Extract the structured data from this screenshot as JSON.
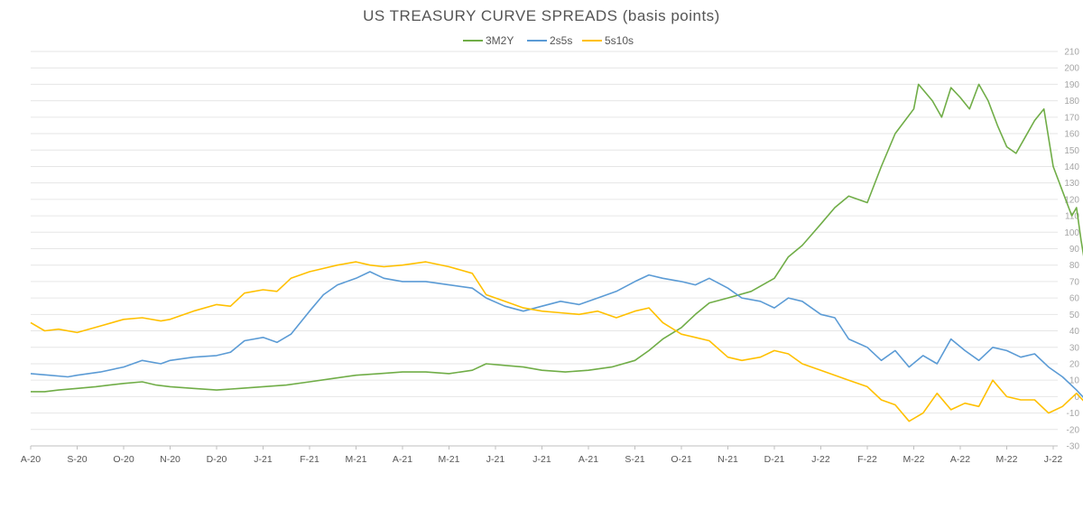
{
  "chart_data": {
    "type": "line",
    "title": "US TREASURY CURVE SPREADS (basis points)",
    "xlabel": "",
    "ylabel": "",
    "ylim": [
      -30,
      210
    ],
    "ytick_step": 10,
    "x_tick_labels": [
      "A-20",
      "S-20",
      "O-20",
      "N-20",
      "D-20",
      "J-21",
      "F-21",
      "M-21",
      "A-21",
      "M-21",
      "J-21",
      "J-21",
      "A-21",
      "S-21",
      "O-21",
      "N-21",
      "D-21",
      "J-22",
      "F-22",
      "M-22",
      "A-22",
      "M-22",
      "J-22"
    ],
    "legend_position": "top-center",
    "grid": true,
    "colors": {
      "3M2Y": "#70ad47",
      "2s5s": "#5b9bd5",
      "5s10s": "#ffc000"
    },
    "series": [
      {
        "name": "3M2Y",
        "end_label": "74",
        "points": [
          [
            0,
            3
          ],
          [
            0.3,
            3
          ],
          [
            0.6,
            4
          ],
          [
            1,
            5
          ],
          [
            1.4,
            6
          ],
          [
            1.7,
            7
          ],
          [
            2,
            8
          ],
          [
            2.4,
            9
          ],
          [
            2.7,
            7
          ],
          [
            3,
            6
          ],
          [
            3.5,
            5
          ],
          [
            4,
            4
          ],
          [
            4.5,
            5
          ],
          [
            5,
            6
          ],
          [
            5.5,
            7
          ],
          [
            6,
            9
          ],
          [
            6.5,
            11
          ],
          [
            7,
            13
          ],
          [
            7.5,
            14
          ],
          [
            8,
            15
          ],
          [
            8.5,
            15
          ],
          [
            9,
            14
          ],
          [
            9.5,
            16
          ],
          [
            9.8,
            20
          ],
          [
            10.2,
            19
          ],
          [
            10.6,
            18
          ],
          [
            11,
            16
          ],
          [
            11.5,
            15
          ],
          [
            12,
            16
          ],
          [
            12.5,
            18
          ],
          [
            13,
            22
          ],
          [
            13.3,
            28
          ],
          [
            13.6,
            35
          ],
          [
            14,
            42
          ],
          [
            14.3,
            50
          ],
          [
            14.6,
            57
          ],
          [
            15,
            60
          ],
          [
            15.5,
            64
          ],
          [
            16,
            72
          ],
          [
            16.3,
            85
          ],
          [
            16.6,
            92
          ],
          [
            17,
            105
          ],
          [
            17.3,
            115
          ],
          [
            17.6,
            122
          ],
          [
            18,
            118
          ],
          [
            18.3,
            140
          ],
          [
            18.6,
            160
          ],
          [
            19,
            175
          ],
          [
            19.1,
            190
          ],
          [
            19.4,
            180
          ],
          [
            19.6,
            170
          ],
          [
            19.8,
            188
          ],
          [
            20,
            182
          ],
          [
            20.2,
            175
          ],
          [
            20.4,
            190
          ],
          [
            20.6,
            180
          ],
          [
            20.8,
            165
          ],
          [
            21,
            152
          ],
          [
            21.2,
            148
          ],
          [
            21.4,
            158
          ],
          [
            21.6,
            168
          ],
          [
            21.8,
            175
          ],
          [
            22,
            140
          ],
          [
            22.2,
            125
          ],
          [
            22.4,
            110
          ],
          [
            22.5,
            115
          ],
          [
            22.6,
            95
          ],
          [
            22.7,
            78
          ],
          [
            22.8,
            74
          ]
        ]
      },
      {
        "name": "2s5s",
        "end_label": "-8",
        "points": [
          [
            0,
            14
          ],
          [
            0.4,
            13
          ],
          [
            0.8,
            12
          ],
          [
            1,
            13
          ],
          [
            1.5,
            15
          ],
          [
            2,
            18
          ],
          [
            2.4,
            22
          ],
          [
            2.8,
            20
          ],
          [
            3,
            22
          ],
          [
            3.5,
            24
          ],
          [
            4,
            25
          ],
          [
            4.3,
            27
          ],
          [
            4.6,
            34
          ],
          [
            5,
            36
          ],
          [
            5.3,
            33
          ],
          [
            5.6,
            38
          ],
          [
            6,
            52
          ],
          [
            6.3,
            62
          ],
          [
            6.6,
            68
          ],
          [
            7,
            72
          ],
          [
            7.3,
            76
          ],
          [
            7.6,
            72
          ],
          [
            8,
            70
          ],
          [
            8.5,
            70
          ],
          [
            9,
            68
          ],
          [
            9.5,
            66
          ],
          [
            9.8,
            60
          ],
          [
            10.2,
            55
          ],
          [
            10.6,
            52
          ],
          [
            11,
            55
          ],
          [
            11.4,
            58
          ],
          [
            11.8,
            56
          ],
          [
            12.2,
            60
          ],
          [
            12.6,
            64
          ],
          [
            13,
            70
          ],
          [
            13.3,
            74
          ],
          [
            13.6,
            72
          ],
          [
            14,
            70
          ],
          [
            14.3,
            68
          ],
          [
            14.6,
            72
          ],
          [
            15,
            66
          ],
          [
            15.3,
            60
          ],
          [
            15.7,
            58
          ],
          [
            16,
            54
          ],
          [
            16.3,
            60
          ],
          [
            16.6,
            58
          ],
          [
            17,
            50
          ],
          [
            17.3,
            48
          ],
          [
            17.6,
            35
          ],
          [
            18,
            30
          ],
          [
            18.3,
            22
          ],
          [
            18.6,
            28
          ],
          [
            18.9,
            18
          ],
          [
            19.2,
            25
          ],
          [
            19.5,
            20
          ],
          [
            19.8,
            35
          ],
          [
            20.1,
            28
          ],
          [
            20.4,
            22
          ],
          [
            20.7,
            30
          ],
          [
            21,
            28
          ],
          [
            21.3,
            24
          ],
          [
            21.6,
            26
          ],
          [
            21.9,
            18
          ],
          [
            22.2,
            12
          ],
          [
            22.5,
            4
          ],
          [
            22.7,
            -2
          ],
          [
            22.8,
            -8
          ]
        ]
      },
      {
        "name": "5s10s",
        "end_label": "-12",
        "points": [
          [
            0,
            45
          ],
          [
            0.3,
            40
          ],
          [
            0.6,
            41
          ],
          [
            1,
            39
          ],
          [
            1.5,
            43
          ],
          [
            2,
            47
          ],
          [
            2.4,
            48
          ],
          [
            2.8,
            46
          ],
          [
            3,
            47
          ],
          [
            3.5,
            52
          ],
          [
            4,
            56
          ],
          [
            4.3,
            55
          ],
          [
            4.6,
            63
          ],
          [
            5,
            65
          ],
          [
            5.3,
            64
          ],
          [
            5.6,
            72
          ],
          [
            6,
            76
          ],
          [
            6.3,
            78
          ],
          [
            6.6,
            80
          ],
          [
            7,
            82
          ],
          [
            7.3,
            80
          ],
          [
            7.6,
            79
          ],
          [
            8,
            80
          ],
          [
            8.5,
            82
          ],
          [
            9,
            79
          ],
          [
            9.5,
            75
          ],
          [
            9.8,
            62
          ],
          [
            10.2,
            58
          ],
          [
            10.6,
            54
          ],
          [
            11,
            52
          ],
          [
            11.4,
            51
          ],
          [
            11.8,
            50
          ],
          [
            12.2,
            52
          ],
          [
            12.6,
            48
          ],
          [
            13,
            52
          ],
          [
            13.3,
            54
          ],
          [
            13.6,
            45
          ],
          [
            14,
            38
          ],
          [
            14.3,
            36
          ],
          [
            14.6,
            34
          ],
          [
            15,
            24
          ],
          [
            15.3,
            22
          ],
          [
            15.7,
            24
          ],
          [
            16,
            28
          ],
          [
            16.3,
            26
          ],
          [
            16.6,
            20
          ],
          [
            17,
            16
          ],
          [
            17.3,
            13
          ],
          [
            17.6,
            10
          ],
          [
            18,
            6
          ],
          [
            18.3,
            -2
          ],
          [
            18.6,
            -5
          ],
          [
            18.9,
            -15
          ],
          [
            19.2,
            -10
          ],
          [
            19.5,
            2
          ],
          [
            19.8,
            -8
          ],
          [
            20.1,
            -4
          ],
          [
            20.4,
            -6
          ],
          [
            20.7,
            10
          ],
          [
            21,
            0
          ],
          [
            21.3,
            -2
          ],
          [
            21.6,
            -2
          ],
          [
            21.9,
            -10
          ],
          [
            22.2,
            -6
          ],
          [
            22.5,
            2
          ],
          [
            22.7,
            -4
          ],
          [
            22.8,
            -12
          ]
        ]
      }
    ]
  }
}
